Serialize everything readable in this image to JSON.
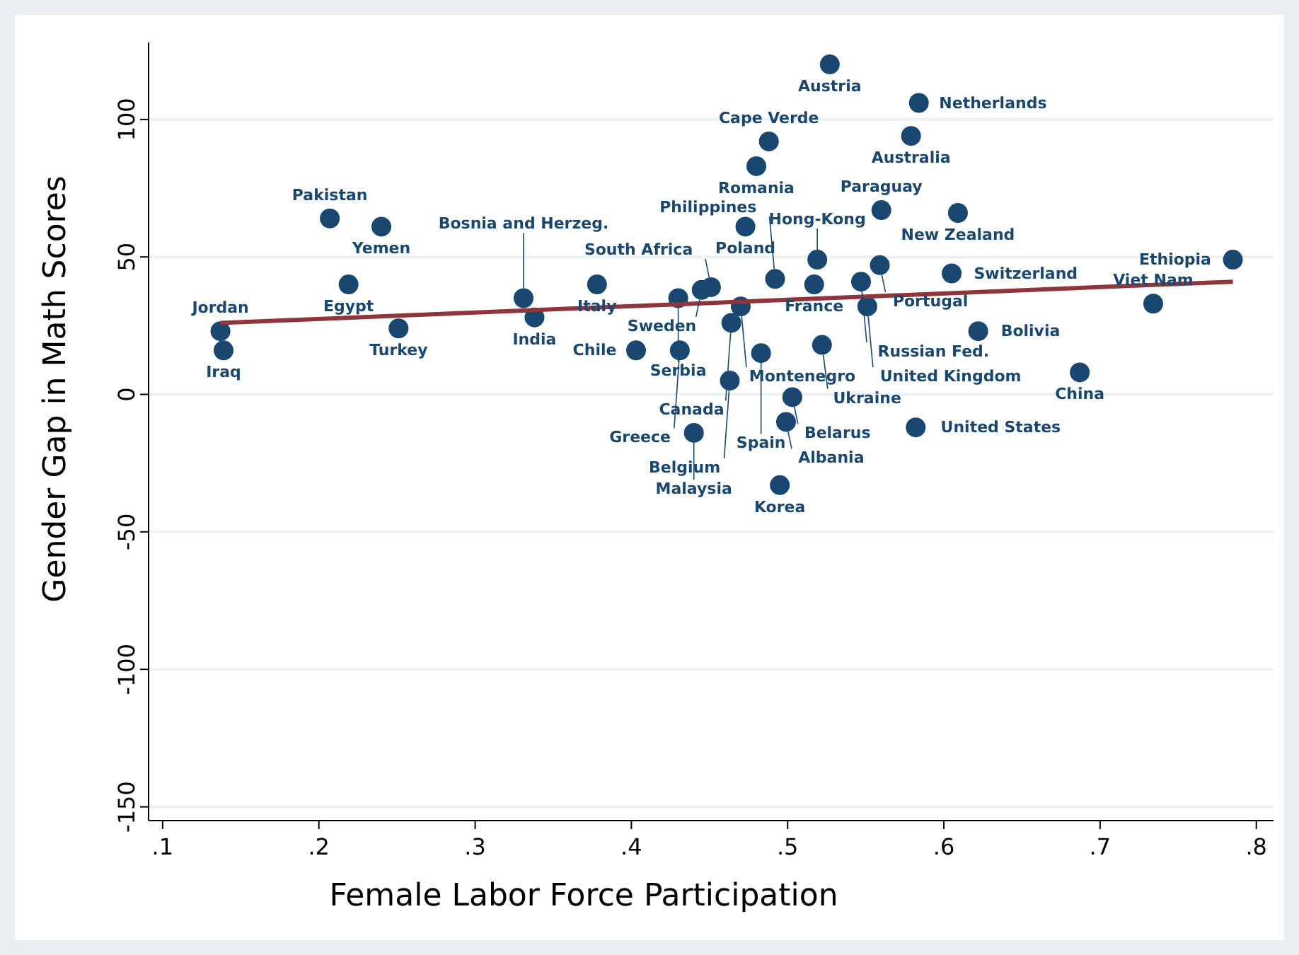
{
  "chart_data": {
    "type": "scatter",
    "xlabel": "Female Labor Force Participation",
    "ylabel": "Gender Gap in Math Scores",
    "xlim": [
      0.091,
      0.811
    ],
    "ylim": [
      -155,
      128
    ],
    "xticks": [
      {
        "value": 0.1,
        "label": ".1"
      },
      {
        "value": 0.2,
        "label": ".2"
      },
      {
        "value": 0.3,
        "label": ".3"
      },
      {
        "value": 0.4,
        "label": ".4"
      },
      {
        "value": 0.5,
        "label": ".5"
      },
      {
        "value": 0.6,
        "label": ".6"
      },
      {
        "value": 0.7,
        "label": ".7"
      },
      {
        "value": 0.8,
        "label": ".8"
      }
    ],
    "yticks": [
      -150,
      -100,
      -50,
      0,
      50,
      100
    ],
    "grid": "y",
    "marker": "circle",
    "series": [
      {
        "color": "#1a476f",
        "x": [
          0.527,
          0.584,
          0.579,
          0.488,
          0.48,
          0.473,
          0.56,
          0.609,
          0.519,
          0.559,
          0.547,
          0.517,
          0.492,
          0.551,
          0.605,
          0.451,
          0.445,
          0.43,
          0.47,
          0.464,
          0.483,
          0.463,
          0.522,
          0.403,
          0.431,
          0.503,
          0.499,
          0.44,
          0.582,
          0.495,
          0.622,
          0.785,
          0.734,
          0.687,
          0.207,
          0.24,
          0.219,
          0.137,
          0.139,
          0.251,
          0.338,
          0.378,
          0.331
        ],
        "values": [
          120,
          106,
          94,
          92,
          83,
          61,
          67,
          66,
          49,
          47,
          41,
          40,
          42,
          32,
          44,
          39,
          38,
          35,
          32,
          26,
          15,
          5,
          18,
          16,
          16,
          -1,
          -10,
          -14,
          -12,
          -33,
          23,
          49,
          33,
          8,
          64,
          61,
          40,
          23,
          16,
          24,
          28,
          40,
          35
        ]
      },
      {
        "type": "line",
        "marker": "none",
        "color": "#90353b",
        "x": [
          0.137,
          0.785
        ],
        "values": [
          26,
          41
        ]
      }
    ],
    "annotations": [
      {
        "text": "Austria",
        "x": 0.527,
        "y": 120
      },
      {
        "text": "Netherlands",
        "x": 0.584,
        "y": 106
      },
      {
        "text": "Australia",
        "x": 0.579,
        "y": 94
      },
      {
        "text": "Cape Verde",
        "x": 0.488,
        "y": 92
      },
      {
        "text": "Romania",
        "x": 0.48,
        "y": 83
      },
      {
        "text": "Poland",
        "x": 0.473,
        "y": 61
      },
      {
        "text": "Paraguay",
        "x": 0.56,
        "y": 67
      },
      {
        "text": "New Zealand",
        "x": 0.609,
        "y": 66
      },
      {
        "text": "Hong-Kong",
        "x": 0.519,
        "y": 49
      },
      {
        "text": "Portugal",
        "x": 0.559,
        "y": 47
      },
      {
        "text": "Russian Fed.",
        "x": 0.547,
        "y": 41
      },
      {
        "text": "France",
        "x": 0.517,
        "y": 40
      },
      {
        "text": "Philippines",
        "x": 0.492,
        "y": 42
      },
      {
        "text": "United Kingdom",
        "x": 0.551,
        "y": 32
      },
      {
        "text": "Switzerland",
        "x": 0.605,
        "y": 44
      },
      {
        "text": "South Africa",
        "x": 0.451,
        "y": 39
      },
      {
        "text": "Sweden",
        "x": 0.445,
        "y": 38
      },
      {
        "text": "Serbia",
        "x": 0.43,
        "y": 35
      },
      {
        "text": "Montenegro",
        "x": 0.47,
        "y": 32
      },
      {
        "text": "Canada",
        "x": 0.464,
        "y": 26
      },
      {
        "text": "Spain",
        "x": 0.483,
        "y": 15
      },
      {
        "text": "Belgium",
        "x": 0.463,
        "y": 5
      },
      {
        "text": "Ukraine",
        "x": 0.522,
        "y": 18
      },
      {
        "text": "Chile",
        "x": 0.403,
        "y": 16
      },
      {
        "text": "Greece",
        "x": 0.431,
        "y": 16
      },
      {
        "text": "Belarus",
        "x": 0.503,
        "y": -1
      },
      {
        "text": "Albania",
        "x": 0.499,
        "y": -10
      },
      {
        "text": "Malaysia",
        "x": 0.44,
        "y": -14
      },
      {
        "text": "United States",
        "x": 0.582,
        "y": -12
      },
      {
        "text": "Korea",
        "x": 0.495,
        "y": -33
      },
      {
        "text": "Bolivia",
        "x": 0.622,
        "y": 23
      },
      {
        "text": "Ethiopia",
        "x": 0.785,
        "y": 49
      },
      {
        "text": "Viet Nam",
        "x": 0.734,
        "y": 33
      },
      {
        "text": "China",
        "x": 0.687,
        "y": 8
      },
      {
        "text": "Pakistan",
        "x": 0.207,
        "y": 64
      },
      {
        "text": "Yemen",
        "x": 0.24,
        "y": 61
      },
      {
        "text": "Egypt",
        "x": 0.219,
        "y": 40
      },
      {
        "text": "Jordan",
        "x": 0.137,
        "y": 23
      },
      {
        "text": "Iraq",
        "x": 0.139,
        "y": 16
      },
      {
        "text": "Turkey",
        "x": 0.251,
        "y": 24
      },
      {
        "text": "India",
        "x": 0.338,
        "y": 28
      },
      {
        "text": "Italy",
        "x": 0.378,
        "y": 40
      },
      {
        "text": "Bosnia and Herzeg.",
        "x": 0.331,
        "y": 35
      }
    ]
  }
}
